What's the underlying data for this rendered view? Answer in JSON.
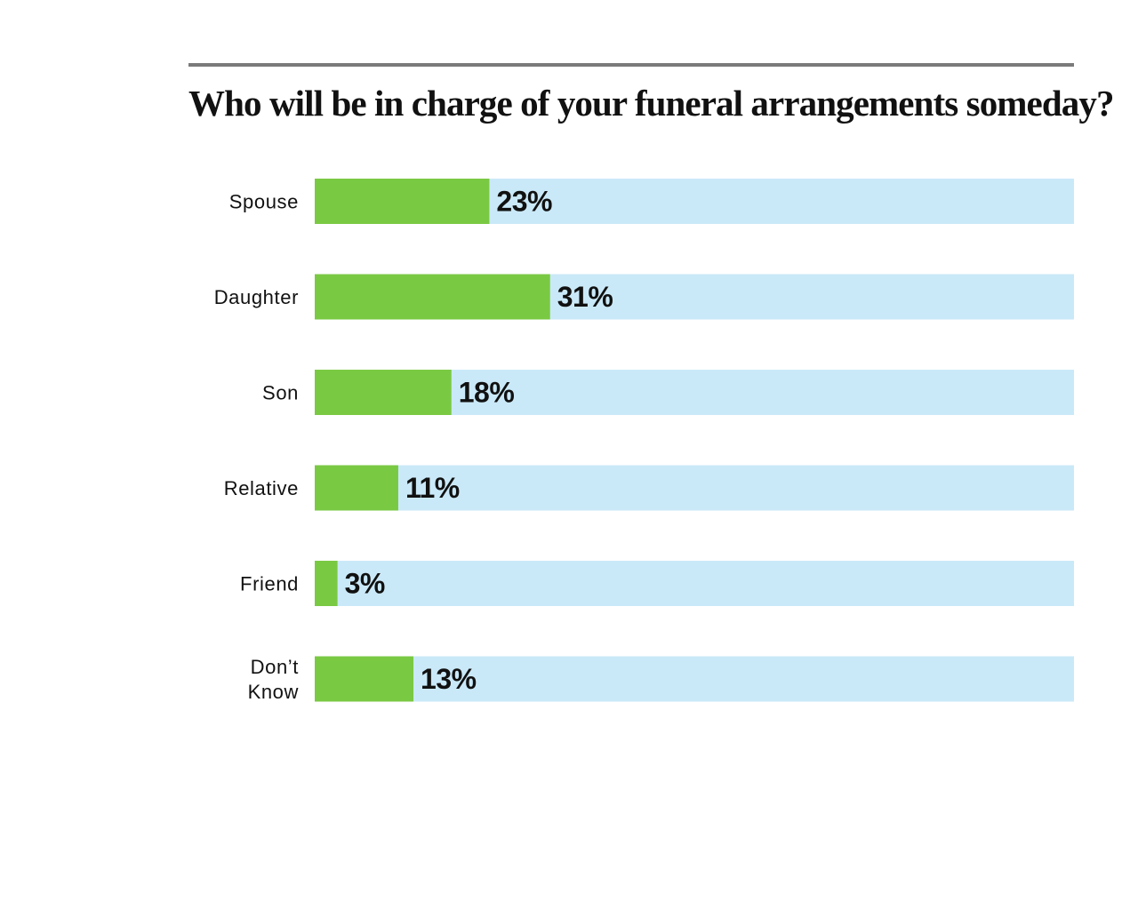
{
  "chart_data": {
    "type": "bar",
    "orientation": "horizontal",
    "title": "Who will be in charge of your funeral arrangements someday?",
    "categories": [
      "Spouse",
      "Daughter",
      "Son",
      "Relative",
      "Friend",
      "Don’t Know"
    ],
    "category_lines": [
      [
        "Spouse"
      ],
      [
        "Daughter"
      ],
      [
        "Son"
      ],
      [
        "Relative"
      ],
      [
        "Friend"
      ],
      [
        "Don’t",
        "Know"
      ]
    ],
    "values": [
      23,
      31,
      18,
      11,
      3,
      13
    ],
    "value_labels": [
      "23%",
      "31%",
      "18%",
      "11%",
      "3%",
      "13%"
    ],
    "xlim": [
      0,
      100
    ],
    "unit": "%",
    "grid": false,
    "legend": "none",
    "colors": {
      "bar": "#7ac943",
      "track": "#cae9f8",
      "rule": "#7a7a7a",
      "text": "#111111"
    }
  }
}
